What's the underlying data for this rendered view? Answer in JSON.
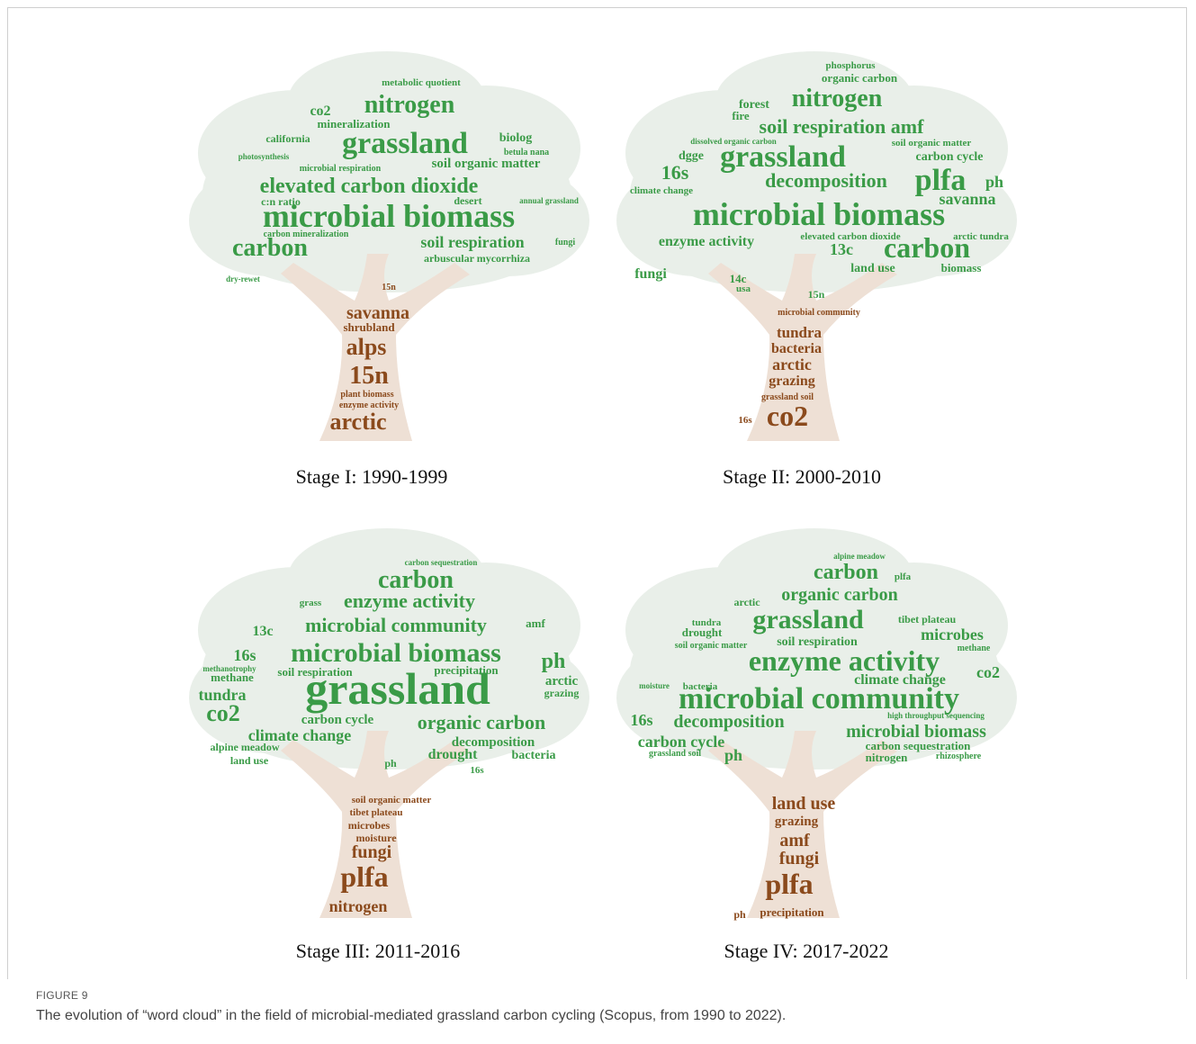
{
  "figure": {
    "label": "FIGURE 9",
    "caption": "The evolution of “word cloud” in the field of microbial-mediated grassland carbon cycling (Scopus, from 1990 to 2022).",
    "panels": [
      {
        "title": "Stage I: 1990-1999",
        "canopy_words": [
          "metabolic quotient",
          "co2",
          "nitrogen",
          "mineralization",
          "california",
          "grassland",
          "biolog",
          "betula nana",
          "photosynthesis",
          "soil organic matter",
          "microbial respiration",
          "elevated carbon dioxide",
          "desert",
          "c:n ratio",
          "annual grassland",
          "microbial biomass",
          "carbon",
          "soil respiration",
          "arbuscular mycorrhiza",
          "fungi",
          "dry-rewet",
          "carbon mineralization"
        ],
        "trunk_words": [
          "15n",
          "savanna",
          "shrubland",
          "alps",
          "15n",
          "plant biomass",
          "enzyme activity",
          "arctic"
        ]
      },
      {
        "title": "Stage II: 2000-2010",
        "canopy_words": [
          "phosphorus",
          "organic carbon",
          "forest",
          "nitrogen",
          "fire",
          "soil respiration amf",
          "dissolved organic carbon",
          "soil organic matter",
          "dgge",
          "grassland",
          "carbon cycle",
          "16s",
          "decomposition",
          "plfa",
          "ph",
          "climate change",
          "savanna",
          "microbial biomass",
          "enzyme activity",
          "elevated carbon dioxide",
          "arctic tundra",
          "13c",
          "carbon",
          "land use",
          "biomass",
          "fungi",
          "14c",
          "usa",
          "15n"
        ],
        "trunk_words": [
          "microbial community",
          "tundra",
          "bacteria",
          "arctic",
          "grazing",
          "grassland soil",
          "co2",
          "16s"
        ]
      },
      {
        "title": "Stage III: 2011-2016",
        "canopy_words": [
          "carbon sequestration",
          "carbon",
          "grass",
          "enzyme activity",
          "13c",
          "microbial community",
          "amf",
          "16s",
          "microbial biomass",
          "ph",
          "methanotrophy",
          "soil respiration",
          "precipitation",
          "methane",
          "tundra",
          "grassland",
          "arctic",
          "grazing",
          "co2",
          "carbon cycle",
          "organic carbon",
          "climate change",
          "decomposition",
          "alpine meadow",
          "drought",
          "bacteria",
          "land use",
          "ph",
          "16s"
        ],
        "trunk_words": [
          "soil organic matter",
          "tibet plateau",
          "microbes",
          "moisture",
          "fungi",
          "plfa",
          "nitrogen"
        ]
      },
      {
        "title": "Stage IV: 2017-2022",
        "canopy_words": [
          "alpine meadow",
          "carbon",
          "plfa",
          "organic carbon",
          "arctic",
          "tundra",
          "grassland",
          "tibet plateau",
          "drought",
          "microbes",
          "soil organic matter",
          "soil respiration",
          "methane",
          "enzyme activity",
          "co2",
          "climate change",
          "bacteria",
          "moisture",
          "microbial community",
          "16s",
          "decomposition",
          "high throughput sequencing",
          "microbial biomass",
          "carbon cycle",
          "carbon sequestration",
          "grassland soil",
          "ph",
          "nitrogen",
          "rhizosphere"
        ],
        "trunk_words": [
          "land use",
          "grazing",
          "amf",
          "fungi",
          "plfa",
          "ph",
          "precipitation"
        ]
      }
    ]
  }
}
